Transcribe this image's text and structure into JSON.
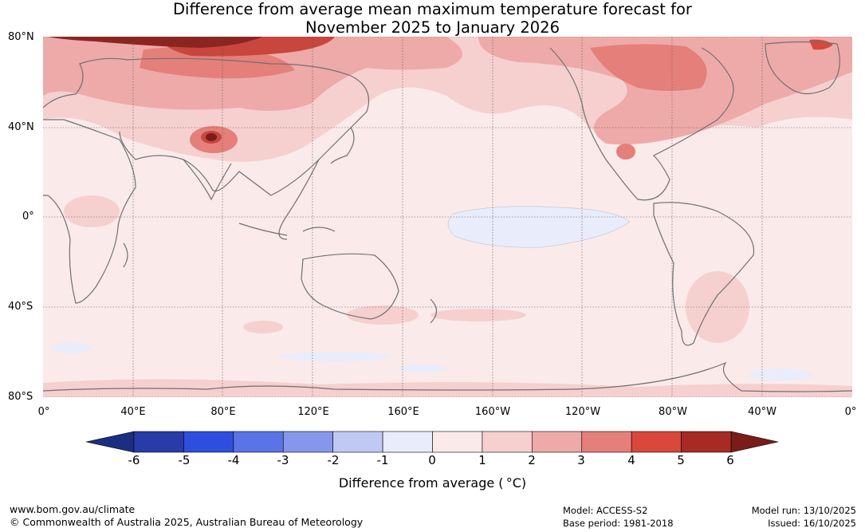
{
  "title": {
    "line1": "Difference from average mean maximum temperature forecast for",
    "line2": "November 2025 to January 2026"
  },
  "map": {
    "y_axis_labels": [
      "80°N",
      "40°N",
      "0°",
      "40°S",
      "80°S"
    ],
    "x_axis_labels": [
      "0°",
      "40°E",
      "80°E",
      "120°E",
      "160°E",
      "160°W",
      "120°W",
      "80°W",
      "40°W",
      "0°"
    ]
  },
  "colorbar": {
    "label": "Difference from average ( °C)",
    "ticks": [
      "-6",
      "-5",
      "-4",
      "-3",
      "-2",
      "-1",
      "0",
      "1",
      "2",
      "3",
      "4",
      "5",
      "6"
    ],
    "colors": [
      "#283ba8",
      "#2f4ee0",
      "#5a73e6",
      "#8696ea",
      "#c0c8f4",
      "#e8ecfb",
      "#fbeaea",
      "#f5d0cf",
      "#eeaaa8",
      "#e57f7a",
      "#d9473d",
      "#a82a24"
    ],
    "under_color": "#1c2e82",
    "over_color": "#7a1c18"
  },
  "footer": {
    "url": "www.bom.gov.au/climate",
    "copyright": "© Commonwealth of Australia 2025, Australian Bureau of Meteorology",
    "model": "Model: ACCESS-S2",
    "base_period": "Base period: 1981-2018",
    "model_run": "Model run: 13/10/2025",
    "issued": "Issued: 16/10/2025"
  }
}
